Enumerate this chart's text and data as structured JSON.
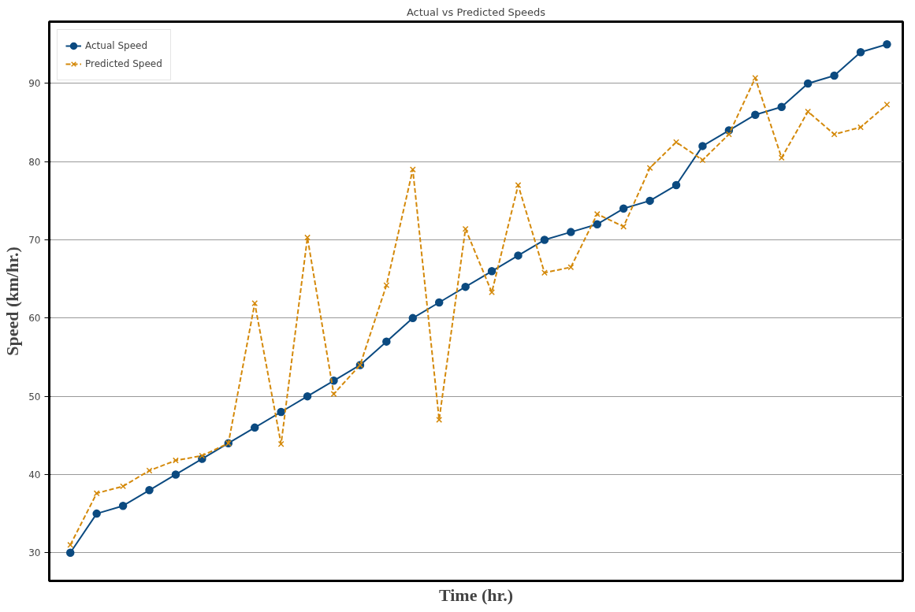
{
  "chart_data": {
    "type": "line",
    "title": "Actual vs Predicted Speeds",
    "xlabel": "Time (hr.)",
    "ylabel": "Speed (km/hr.)",
    "categories": [
      null,
      null,
      null,
      null,
      null,
      null,
      null,
      null,
      null,
      null,
      null,
      null,
      null,
      null,
      null,
      null,
      null,
      null,
      null,
      null,
      null,
      null,
      null,
      null,
      null,
      null,
      null,
      null,
      null,
      null,
      null,
      null
    ],
    "series": [
      {
        "name": "Actual Speed",
        "color": "#0b4a80",
        "marker": "circle",
        "line_style": "solid",
        "values": [
          30,
          35,
          36,
          38,
          40,
          42,
          44,
          46,
          48,
          50,
          52,
          54,
          57,
          60,
          62,
          64,
          66,
          68,
          70,
          71,
          72,
          74,
          75,
          77,
          82,
          84,
          86,
          87,
          90,
          91,
          94,
          95
        ]
      },
      {
        "name": "Predicted Speed",
        "color": "#d4890a",
        "marker": "cross",
        "line_style": "dashed",
        "values": [
          31,
          37.6,
          38.5,
          40.5,
          41.8,
          42.4,
          44,
          61.9,
          43.9,
          70.3,
          50.3,
          54,
          64.2,
          79,
          47,
          71.4,
          63.3,
          77,
          65.8,
          66.5,
          73.3,
          71.7,
          79.2,
          82.5,
          80.2,
          83.5,
          90.7,
          80.5,
          86.4,
          83.5,
          84.4,
          87.3
        ]
      }
    ],
    "ylim": [
      26.4,
      97.9
    ],
    "yticks": [
      30,
      40,
      50,
      60,
      70,
      80,
      90
    ],
    "grid": "y",
    "legend": "top left",
    "tick_labels": "y"
  }
}
